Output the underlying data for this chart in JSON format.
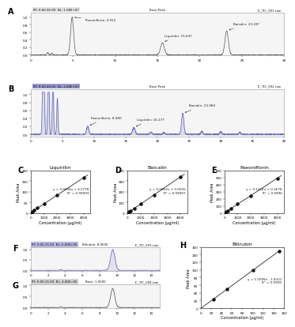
{
  "background_color": "#ffffff",
  "panel_C": {
    "title": "Liquiritin",
    "equation": "y = 0.0406x + 4.2778",
    "r2": "R² = 0.99993",
    "xlabel": "Concentration (μg/ml)",
    "ylabel": "Peak Area",
    "x_data": [
      62.5,
      125,
      250,
      500,
      1000,
      2000,
      4000
    ],
    "y_data": [
      2.8,
      6.5,
      14.5,
      24.5,
      42,
      84,
      166
    ],
    "xlim": [
      0,
      4500
    ],
    "ylim": [
      0,
      200
    ]
  },
  "panel_D": {
    "title": "Baicalin",
    "equation": "y = 0.0863x + 0.0505",
    "r2": "R² = 0.99997",
    "xlabel": "Concentration (μg/ml)",
    "ylabel": "Peak Area",
    "x_data": [
      31.25,
      62.5,
      125,
      250,
      500,
      1000,
      2000,
      4000
    ],
    "y_data": [
      2.5,
      5.5,
      11.5,
      23,
      43.5,
      86,
      170,
      340
    ],
    "xlim": [
      0,
      4500
    ],
    "ylim": [
      0,
      400
    ]
  },
  "panel_E": {
    "title": "Paeoniflorin",
    "equation": "y = 0.1226x + 0.2678",
    "r2": "R² = 0.9996",
    "xlabel": "Concentration (μg/ml)",
    "ylabel": "Peak Area",
    "x_data": [
      31.25,
      62.5,
      125,
      250,
      500,
      1000,
      2000,
      4000
    ],
    "y_data": [
      3.5,
      8.0,
      17.5,
      35,
      68,
      130,
      245,
      490
    ],
    "xlim": [
      0,
      4500
    ],
    "ylim": [
      0,
      600
    ]
  },
  "panel_H": {
    "title": "Bilirubin",
    "equation": "y = 1.0099x - 1.8321",
    "r2": "R² = 0.9999",
    "xlabel": "Concentration (μg/ml)",
    "ylabel": "Peak Area",
    "x_data": [
      25,
      50,
      100,
      150
    ],
    "y_data": [
      24,
      49,
      99,
      149
    ],
    "xlim": [
      0,
      160
    ],
    "ylim": [
      0,
      160
    ]
  }
}
